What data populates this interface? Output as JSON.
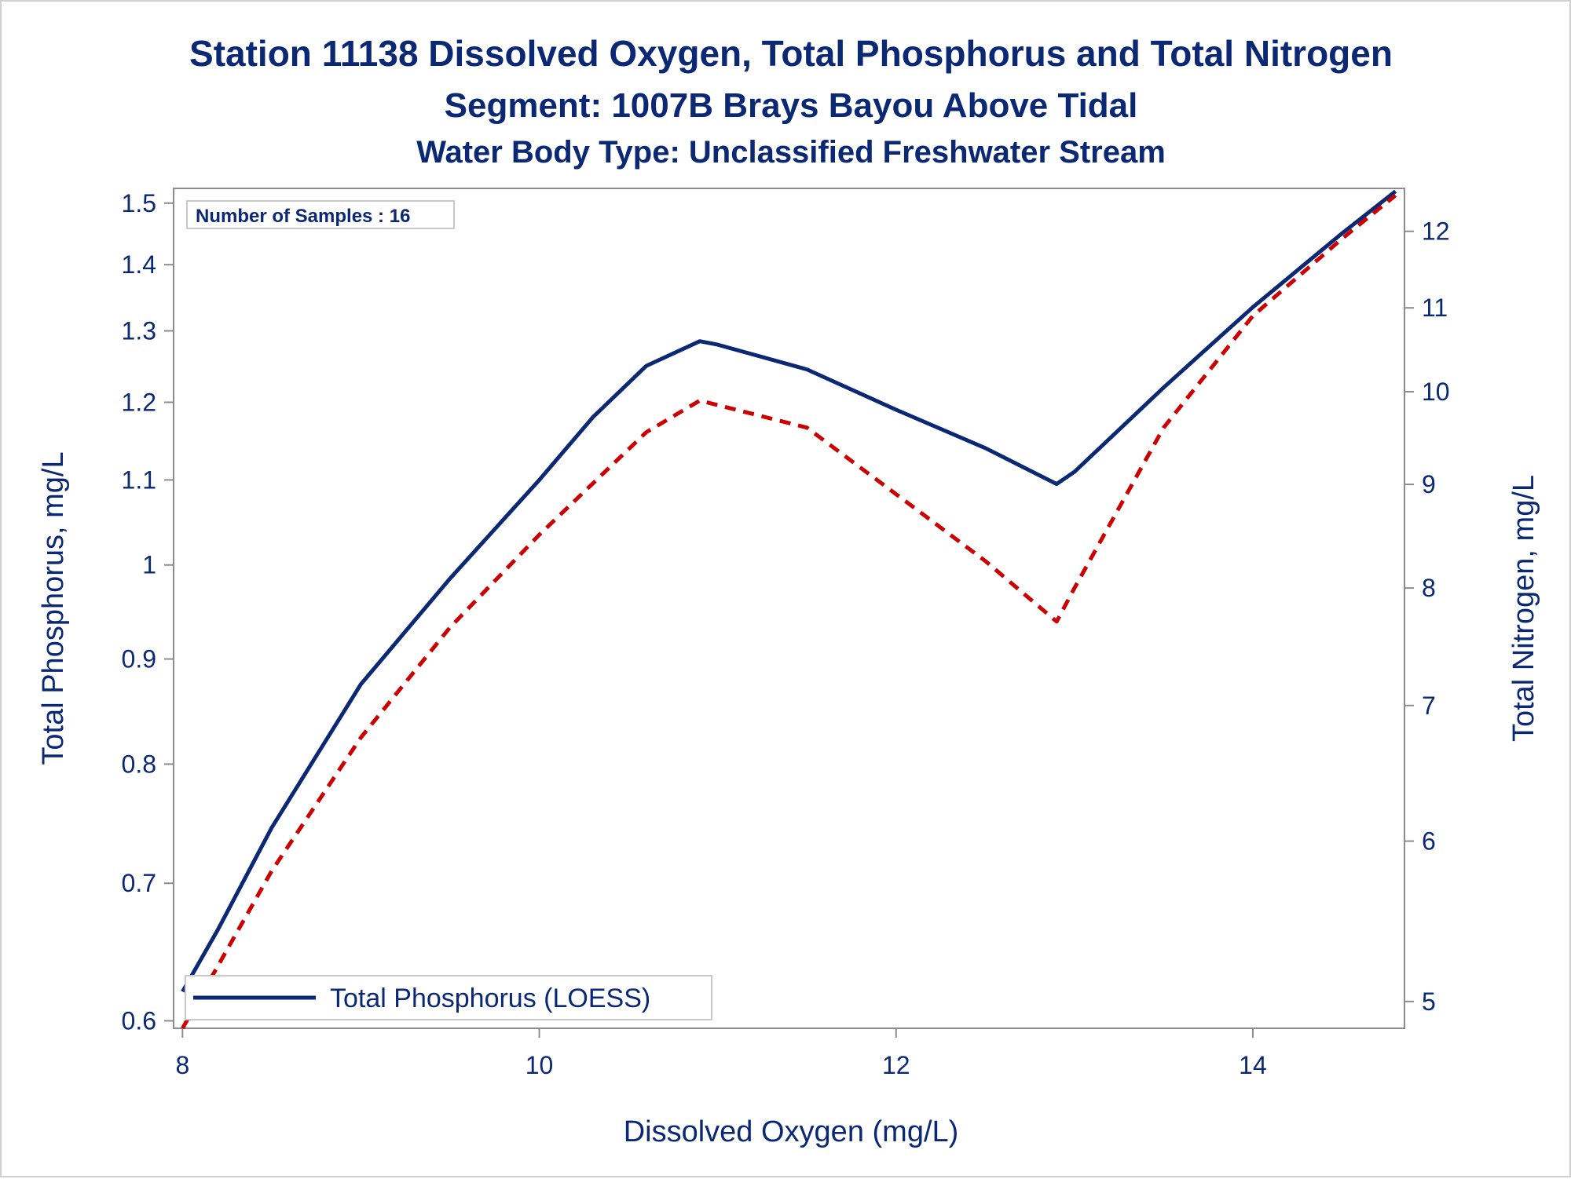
{
  "chart_data": {
    "type": "line",
    "title": "Station 11138  Dissolved Oxygen, Total Phosphorus and Total Nitrogen",
    "subtitle": "Segment: 1007B  Brays Bayou Above Tidal",
    "subtitle2": "Water Body Type: Unclassified Freshwater Stream",
    "xlabel": "Dissolved Oxygen (mg/L)",
    "ylabel": "Total Phosphorus, mg/L",
    "y2label": "Total Nitrogen, mg/L",
    "xlim": [
      7.95,
      14.85
    ],
    "ylim": [
      0.595,
      1.525
    ],
    "y_scale": "log",
    "y2lim": [
      4.85,
      12.6
    ],
    "y2_scale": "log",
    "x_ticks": [
      "8",
      "10",
      "12",
      "14"
    ],
    "y_ticks": [
      "0.6",
      "0.7",
      "0.8",
      "0.9",
      "1",
      "1.1",
      "1.2",
      "1.3",
      "1.4",
      "1.5"
    ],
    "y2_ticks": [
      "5",
      "6",
      "7",
      "8",
      "9",
      "10",
      "11",
      "12"
    ],
    "annotation": "Number of Samples : 16",
    "legend": {
      "position": "bottom-left",
      "entries": [
        "Total Phosphorus (LOESS)"
      ]
    },
    "grid": false,
    "colors": {
      "phosphorus": "#0b2874",
      "nitrogen": "#cc0000",
      "text": "#0b2874",
      "axis": "#8c8c8c"
    },
    "series": [
      {
        "name": "Total Phosphorus (LOESS)",
        "axis": "left",
        "style": "solid",
        "x": [
          8.0,
          8.2,
          8.5,
          9.0,
          9.5,
          10.0,
          10.3,
          10.6,
          10.9,
          11.0,
          11.5,
          12.0,
          12.5,
          12.9,
          13.0,
          13.5,
          14.0,
          14.5,
          14.8
        ],
        "y": [
          0.62,
          0.665,
          0.745,
          0.875,
          0.985,
          1.1,
          1.18,
          1.25,
          1.285,
          1.28,
          1.245,
          1.19,
          1.14,
          1.095,
          1.11,
          1.22,
          1.335,
          1.45,
          1.52
        ]
      },
      {
        "axis": "right",
        "style": "dashed",
        "x": [
          8.0,
          8.5,
          9.0,
          9.5,
          10.0,
          10.6,
          10.9,
          11.5,
          12.0,
          12.5,
          12.9,
          13.0,
          13.5,
          14.0,
          14.5,
          14.8
        ],
        "y": [
          4.85,
          5.8,
          6.75,
          7.65,
          8.5,
          9.55,
          9.9,
          9.6,
          8.9,
          8.25,
          7.7,
          8.0,
          9.6,
          10.9,
          11.9,
          12.5
        ]
      }
    ]
  }
}
